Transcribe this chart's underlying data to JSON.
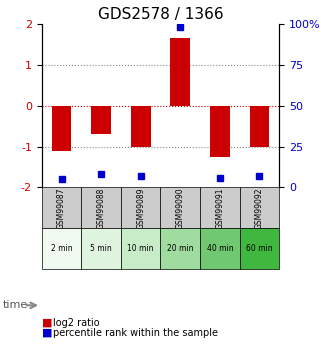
{
  "title": "GDS2578 / 1366",
  "samples": [
    "GSM99087",
    "GSM99088",
    "GSM99089",
    "GSM99090",
    "GSM99091",
    "GSM99092"
  ],
  "time_labels": [
    "2 min",
    "5 min",
    "10 min",
    "20 min",
    "40 min",
    "60 min"
  ],
  "log2_ratio": [
    -1.1,
    -0.7,
    -1.0,
    1.65,
    -1.25,
    -1.0
  ],
  "percentile_rank": [
    5,
    8,
    7,
    98,
    6,
    7
  ],
  "bar_color": "#cc0000",
  "dot_color": "#0000cc",
  "ylim": [
    -2,
    2
  ],
  "right_ylim": [
    0,
    100
  ],
  "right_yticks": [
    0,
    25,
    50,
    75,
    100
  ],
  "right_yticklabels": [
    "0",
    "25",
    "50",
    "75",
    "100%"
  ],
  "left_yticks": [
    -2,
    -1,
    0,
    1,
    2
  ],
  "dotted_line_color": "#888888",
  "zero_line_color": "#cc0000",
  "time_row_green": [
    "#f0faf0",
    "#e0f5e0",
    "#c8ecc8",
    "#a0dca0",
    "#70c870",
    "#40b840"
  ],
  "sample_row_color": "#cccccc",
  "legend_red_label": "log2 ratio",
  "legend_blue_label": "percentile rank within the sample",
  "title_fontsize": 11,
  "tick_fontsize": 8
}
